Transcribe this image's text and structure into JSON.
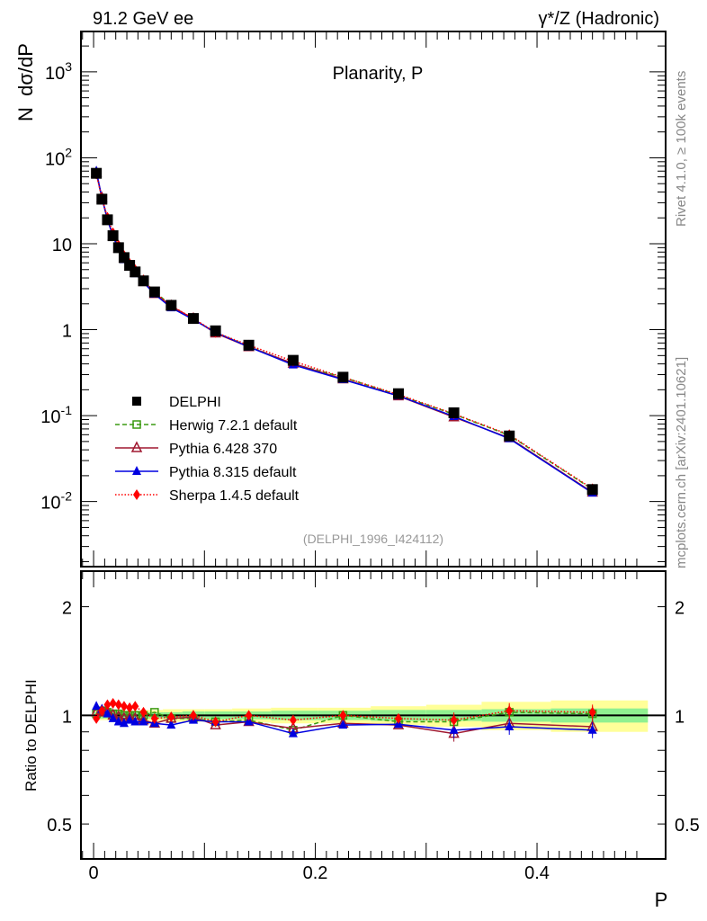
{
  "header": {
    "left": "91.2 GeV ee",
    "right": "γ*/Z (Hadronic)"
  },
  "side_text": {
    "rivet": "Rivet 4.1.0, ≥ 100k events",
    "mcplots": "mcplots.cern.ch [arXiv:2401.10621]"
  },
  "colors": {
    "DELPHI": "#000000",
    "Herwig": "#3a9a10",
    "Pythia6": "#a01830",
    "Pythia8": "#0000e0",
    "Sherpa": "#ff0000",
    "band_inner": "#90f090",
    "band_outer": "#ffff99"
  },
  "chart_data": [
    {
      "type": "line",
      "title": "Planarity, P",
      "ylabel": "N  dσ/dP",
      "yscale": "log",
      "ylim": [
        0.00175,
        2950
      ],
      "xlim": [
        -0.0114,
        0.516
      ],
      "ytick_labels": [
        "10^-2",
        "10^-1",
        "1",
        "10",
        "10^2",
        "10^3"
      ],
      "ytick_values": [
        0.01,
        0.1,
        1,
        10,
        100,
        1000
      ],
      "annotation": "(DELPHI_1996_I424112)",
      "legend_position": "lower-left",
      "x": [
        0.0025,
        0.0075,
        0.0125,
        0.0175,
        0.0225,
        0.0275,
        0.0325,
        0.0375,
        0.045,
        0.055,
        0.07,
        0.09,
        0.11,
        0.14,
        0.18,
        0.225,
        0.275,
        0.325,
        0.375,
        0.45
      ],
      "series": [
        {
          "name": "DELPHI",
          "key": "DELPHI",
          "marker": "square-filled",
          "values": [
            66,
            33,
            19,
            12.4,
            9.0,
            6.9,
            5.6,
            4.7,
            3.7,
            2.75,
            1.92,
            1.35,
            0.97,
            0.66,
            0.44,
            0.28,
            0.18,
            0.108,
            0.058,
            0.0138
          ]
        },
        {
          "name": "Herwig 7.2.1 default",
          "key": "Herwig",
          "marker": "square-open",
          "dash": "5,3",
          "values": [
            67,
            34,
            19.5,
            12.5,
            9.1,
            6.9,
            5.6,
            4.7,
            3.7,
            2.8,
            1.89,
            1.32,
            0.93,
            0.64,
            0.4,
            0.28,
            0.173,
            0.104,
            0.059,
            0.0139
          ]
        },
        {
          "name": "Pythia 6.428 370",
          "key": "Pythia6",
          "marker": "triangle-open",
          "values": [
            67,
            34,
            19.3,
            12.3,
            8.9,
            6.8,
            5.5,
            4.6,
            3.6,
            2.62,
            1.88,
            1.34,
            0.91,
            0.63,
            0.405,
            0.266,
            0.169,
            0.096,
            0.055,
            0.0128
          ]
        },
        {
          "name": "Pythia 8.315 default",
          "key": "Pythia8",
          "marker": "triangle-filled",
          "values": [
            70,
            34.3,
            19.2,
            12.2,
            8.65,
            6.55,
            5.4,
            4.5,
            3.55,
            2.6,
            1.8,
            1.31,
            0.93,
            0.63,
            0.39,
            0.263,
            0.17,
            0.098,
            0.054,
            0.0126
          ]
        },
        {
          "name": "Sherpa 1.4.5 default",
          "key": "Sherpa",
          "marker": "diamond",
          "dash": "1.5,2",
          "values": [
            64.5,
            34,
            20.3,
            13.4,
            9.6,
            7.3,
            5.9,
            5.0,
            3.8,
            2.7,
            1.9,
            1.35,
            0.93,
            0.66,
            0.43,
            0.28,
            0.176,
            0.105,
            0.06,
            0.0141
          ]
        }
      ]
    },
    {
      "type": "line",
      "ylabel": "Ratio to DELPHI",
      "xlabel": "P",
      "yscale": "log",
      "ylim": [
        0.4,
        2.51
      ],
      "ytick_labels": [
        "0.5",
        "1",
        "2"
      ],
      "ytick_values": [
        0.5,
        1,
        2
      ],
      "xtick_labels": [
        "0",
        "0.2",
        "0.4"
      ],
      "xtick_values": [
        0,
        0.2,
        0.4
      ],
      "band_inner": [
        0.02,
        0.02,
        0.02,
        0.02,
        0.02,
        0.02,
        0.02,
        0.02,
        0.02,
        0.02,
        0.02,
        0.025,
        0.025,
        0.025,
        0.03,
        0.03,
        0.035,
        0.035,
        0.04,
        0.045
      ],
      "band_outer": [
        0.03,
        0.03,
        0.03,
        0.03,
        0.03,
        0.03,
        0.03,
        0.03,
        0.035,
        0.035,
        0.04,
        0.04,
        0.04,
        0.045,
        0.05,
        0.05,
        0.06,
        0.07,
        0.09,
        0.1
      ],
      "series": [
        {
          "name": "Herwig 7.2.1 default",
          "key": "Herwig",
          "values": [
            1.01,
            1.03,
            1.02,
            1.01,
            1.01,
            1.0,
            1.0,
            1.0,
            1.0,
            1.02,
            0.98,
            0.98,
            0.96,
            0.97,
            0.91,
            1.0,
            0.96,
            0.96,
            1.02,
            1.01
          ]
        },
        {
          "name": "Pythia 6.428 370",
          "key": "Pythia6",
          "values": [
            1.02,
            1.03,
            1.02,
            1.0,
            0.99,
            0.98,
            0.98,
            0.98,
            0.97,
            0.95,
            0.98,
            0.99,
            0.94,
            0.96,
            0.92,
            0.95,
            0.94,
            0.89,
            0.95,
            0.93
          ]
        },
        {
          "name": "Pythia 8.315 default",
          "key": "Pythia8",
          "values": [
            1.06,
            1.04,
            1.01,
            0.98,
            0.96,
            0.95,
            0.97,
            0.96,
            0.96,
            0.95,
            0.94,
            0.97,
            0.96,
            0.96,
            0.89,
            0.94,
            0.945,
            0.91,
            0.93,
            0.91
          ]
        },
        {
          "name": "Sherpa 1.4.5 default",
          "key": "Sherpa",
          "values": [
            0.98,
            1.03,
            1.07,
            1.08,
            1.07,
            1.06,
            1.05,
            1.06,
            1.02,
            0.98,
            0.99,
            1.0,
            0.96,
            1.0,
            0.97,
            1.0,
            0.98,
            0.97,
            1.03,
            1.02
          ]
        }
      ]
    }
  ]
}
